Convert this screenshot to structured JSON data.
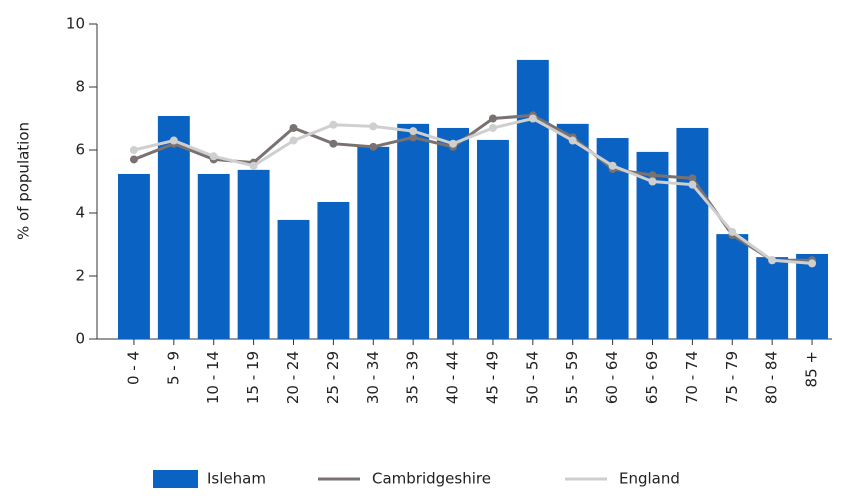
{
  "chart_data": {
    "type": "bar",
    "y_label": "% of population",
    "categories": [
      "0 - 4",
      "5 - 9",
      "10 - 14",
      "15 - 19",
      "20 - 24",
      "25 - 29",
      "30 - 34",
      "35 - 39",
      "40 - 44",
      "45 - 49",
      "50 - 54",
      "55 - 59",
      "60 - 64",
      "65 - 69",
      "70 - 74",
      "75 - 79",
      "80 - 84",
      "85 +"
    ],
    "series": [
      {
        "name": "Isleham",
        "type": "bar",
        "color": "#0a63c2",
        "values": [
          5.24,
          7.08,
          5.24,
          5.37,
          3.78,
          4.35,
          6.1,
          6.83,
          6.7,
          6.32,
          8.86,
          6.83,
          6.38,
          5.94,
          6.7,
          3.33,
          2.6,
          2.7
        ]
      },
      {
        "name": "Cambridgeshire",
        "type": "line",
        "color": "#7a7171",
        "values": [
          5.7,
          6.2,
          5.7,
          5.6,
          6.7,
          6.2,
          6.1,
          6.4,
          6.1,
          7.0,
          7.1,
          6.4,
          5.4,
          5.2,
          5.1,
          3.3,
          2.5,
          2.5
        ]
      },
      {
        "name": "England",
        "type": "line",
        "color": "#cfcfcf",
        "values": [
          6.0,
          6.3,
          5.8,
          5.5,
          6.3,
          6.8,
          6.75,
          6.6,
          6.2,
          6.7,
          7.0,
          6.3,
          5.5,
          5.0,
          4.9,
          3.4,
          2.5,
          2.4
        ]
      }
    ],
    "ylim": [
      0,
      10
    ],
    "yticks": [
      0,
      2,
      4,
      6,
      8,
      10
    ],
    "legend": "bottom"
  }
}
